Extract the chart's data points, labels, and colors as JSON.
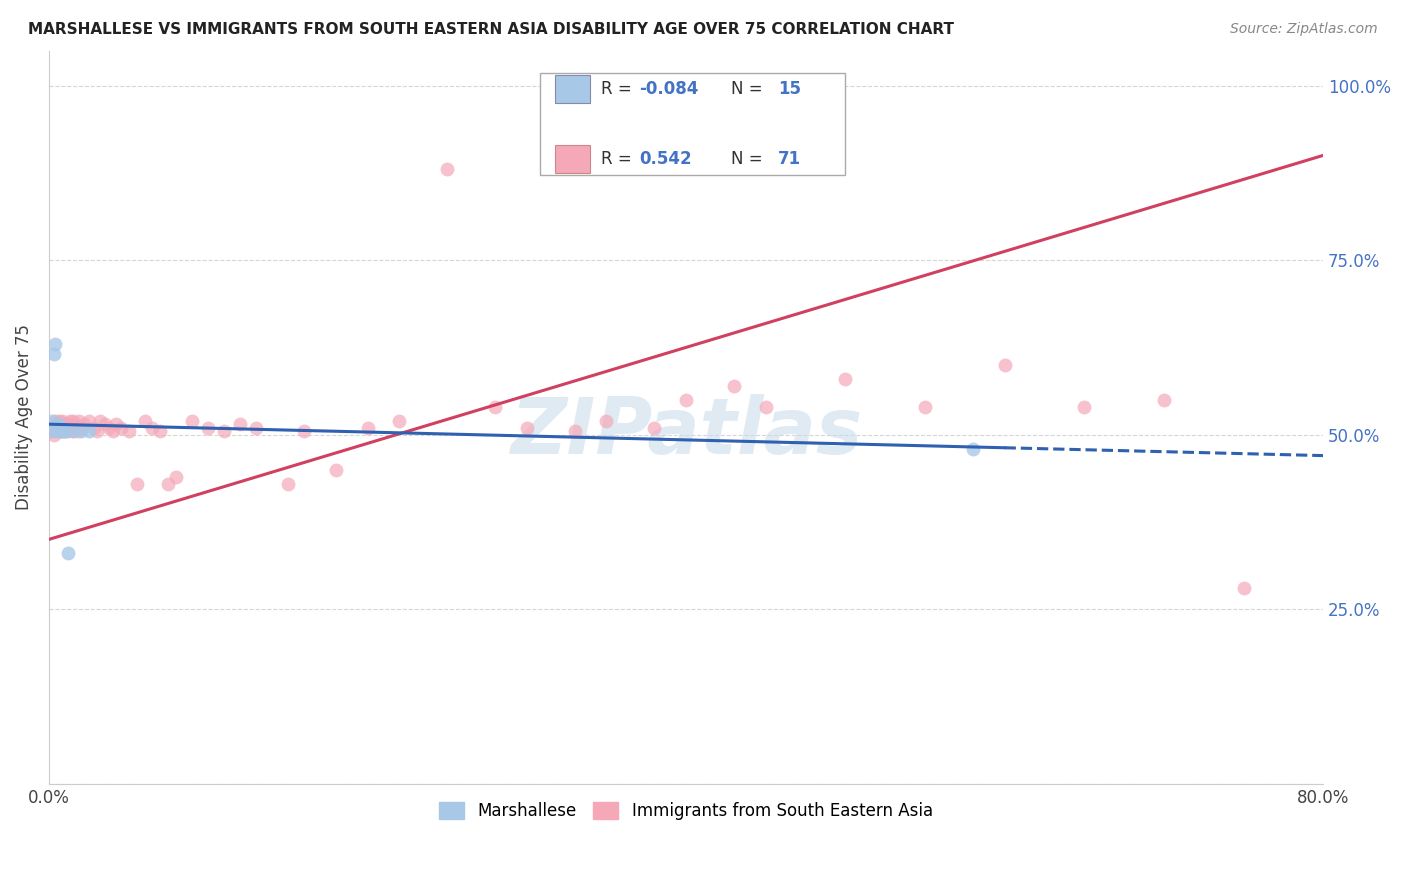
{
  "title": "MARSHALLESE VS IMMIGRANTS FROM SOUTH EASTERN ASIA DISABILITY AGE OVER 75 CORRELATION CHART",
  "source": "Source: ZipAtlas.com",
  "ylabel": "Disability Age Over 75",
  "x_min": 0.0,
  "x_max": 0.8,
  "y_min": 0.0,
  "y_max": 1.05,
  "blue_R": -0.084,
  "blue_N": 15,
  "pink_R": 0.542,
  "pink_N": 71,
  "blue_color": "#a8c8e8",
  "pink_color": "#f4a8b8",
  "blue_line_color": "#3060b0",
  "pink_line_color": "#d04060",
  "watermark": "ZIPatlas",
  "legend_blue_label": "Marshallese",
  "legend_pink_label": "Immigrants from South Eastern Asia",
  "blue_scatter_x": [
    0.001,
    0.002,
    0.003,
    0.004,
    0.005,
    0.006,
    0.007,
    0.008,
    0.009,
    0.01,
    0.012,
    0.015,
    0.02,
    0.025,
    0.58
  ],
  "blue_scatter_y": [
    0.505,
    0.52,
    0.615,
    0.63,
    0.505,
    0.515,
    0.505,
    0.505,
    0.505,
    0.505,
    0.33,
    0.505,
    0.505,
    0.505,
    0.48
  ],
  "pink_scatter_x": [
    0.001,
    0.002,
    0.003,
    0.004,
    0.004,
    0.005,
    0.005,
    0.006,
    0.006,
    0.007,
    0.007,
    0.008,
    0.008,
    0.009,
    0.009,
    0.01,
    0.01,
    0.011,
    0.012,
    0.012,
    0.013,
    0.014,
    0.015,
    0.015,
    0.016,
    0.017,
    0.018,
    0.019,
    0.02,
    0.022,
    0.025,
    0.028,
    0.03,
    0.032,
    0.035,
    0.038,
    0.04,
    0.042,
    0.045,
    0.05,
    0.055,
    0.06,
    0.065,
    0.07,
    0.075,
    0.08,
    0.09,
    0.1,
    0.11,
    0.12,
    0.13,
    0.15,
    0.16,
    0.18,
    0.2,
    0.22,
    0.25,
    0.28,
    0.3,
    0.33,
    0.35,
    0.38,
    0.4,
    0.43,
    0.45,
    0.5,
    0.55,
    0.6,
    0.65,
    0.7,
    0.75
  ],
  "pink_scatter_y": [
    0.505,
    0.51,
    0.5,
    0.52,
    0.505,
    0.51,
    0.515,
    0.505,
    0.52,
    0.51,
    0.515,
    0.505,
    0.52,
    0.51,
    0.515,
    0.505,
    0.515,
    0.51,
    0.515,
    0.505,
    0.52,
    0.51,
    0.505,
    0.52,
    0.515,
    0.51,
    0.505,
    0.52,
    0.51,
    0.515,
    0.52,
    0.51,
    0.505,
    0.52,
    0.515,
    0.51,
    0.505,
    0.515,
    0.51,
    0.505,
    0.43,
    0.52,
    0.51,
    0.505,
    0.43,
    0.44,
    0.52,
    0.51,
    0.505,
    0.515,
    0.51,
    0.43,
    0.505,
    0.45,
    0.51,
    0.52,
    0.88,
    0.54,
    0.51,
    0.505,
    0.52,
    0.51,
    0.55,
    0.57,
    0.54,
    0.58,
    0.54,
    0.6,
    0.54,
    0.55,
    0.28
  ]
}
